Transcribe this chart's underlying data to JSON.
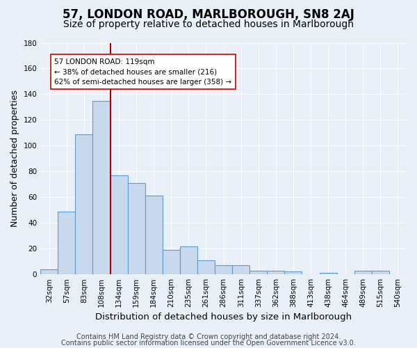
{
  "title": "57, LONDON ROAD, MARLBOROUGH, SN8 2AJ",
  "subtitle": "Size of property relative to detached houses in Marlborough",
  "xlabel": "Distribution of detached houses by size in Marlborough",
  "ylabel": "Number of detached properties",
  "categories": [
    "32sqm",
    "57sqm",
    "83sqm",
    "108sqm",
    "134sqm",
    "159sqm",
    "184sqm",
    "210sqm",
    "235sqm",
    "261sqm",
    "286sqm",
    "311sqm",
    "337sqm",
    "362sqm",
    "388sqm",
    "413sqm",
    "438sqm",
    "464sqm",
    "489sqm",
    "515sqm",
    "540sqm"
  ],
  "values": [
    4,
    49,
    109,
    135,
    77,
    71,
    61,
    19,
    22,
    11,
    7,
    7,
    3,
    3,
    2,
    0,
    1,
    0,
    3,
    3,
    0
  ],
  "bar_color": "#c9d9ed",
  "bar_edge_color": "#5b9bd5",
  "background_color": "#eaf0f8",
  "grid_color": "#ffffff",
  "vline_position": 3.5,
  "vline_color": "#aa0000",
  "annotation_text": "57 LONDON ROAD: 119sqm\n← 38% of detached houses are smaller (216)\n62% of semi-detached houses are larger (358) →",
  "annotation_box_color": "#ffffff",
  "annotation_box_edge": "#cc0000",
  "ylim": [
    0,
    180
  ],
  "yticks": [
    0,
    20,
    40,
    60,
    80,
    100,
    120,
    140,
    160,
    180
  ],
  "footer1": "Contains HM Land Registry data © Crown copyright and database right 2024.",
  "footer2": "Contains public sector information licensed under the Open Government Licence v3.0.",
  "title_fontsize": 12,
  "subtitle_fontsize": 10,
  "xlabel_fontsize": 9.5,
  "ylabel_fontsize": 9,
  "tick_fontsize": 7.5,
  "footer_fontsize": 7
}
